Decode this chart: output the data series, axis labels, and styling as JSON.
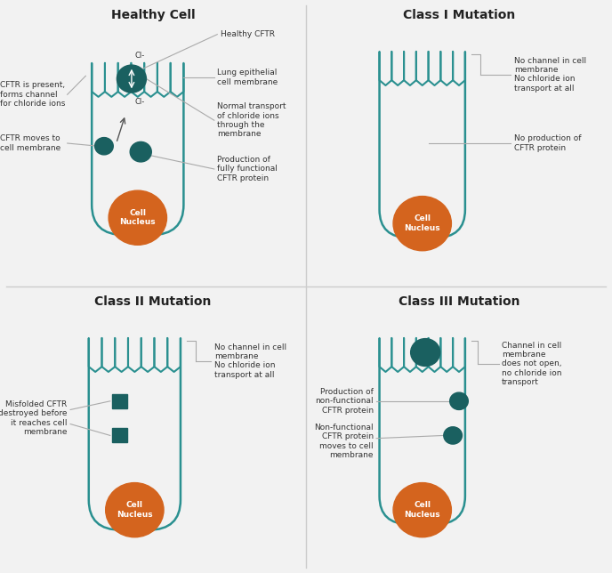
{
  "bg_color": "#f2f2f2",
  "teal": "#2a9090",
  "teal_dark": "#1a6060",
  "teal_mid": "#1e7878",
  "orange": "#d4641e",
  "gray_text": "#333333",
  "line_color": "#aaaaaa",
  "titles": [
    "Healthy Cell",
    "Class I Mutation",
    "Class II Mutation",
    "Class III Mutation"
  ],
  "divider_color": "#cccccc",
  "title_fontsize": 10,
  "anno_fontsize": 6.5
}
